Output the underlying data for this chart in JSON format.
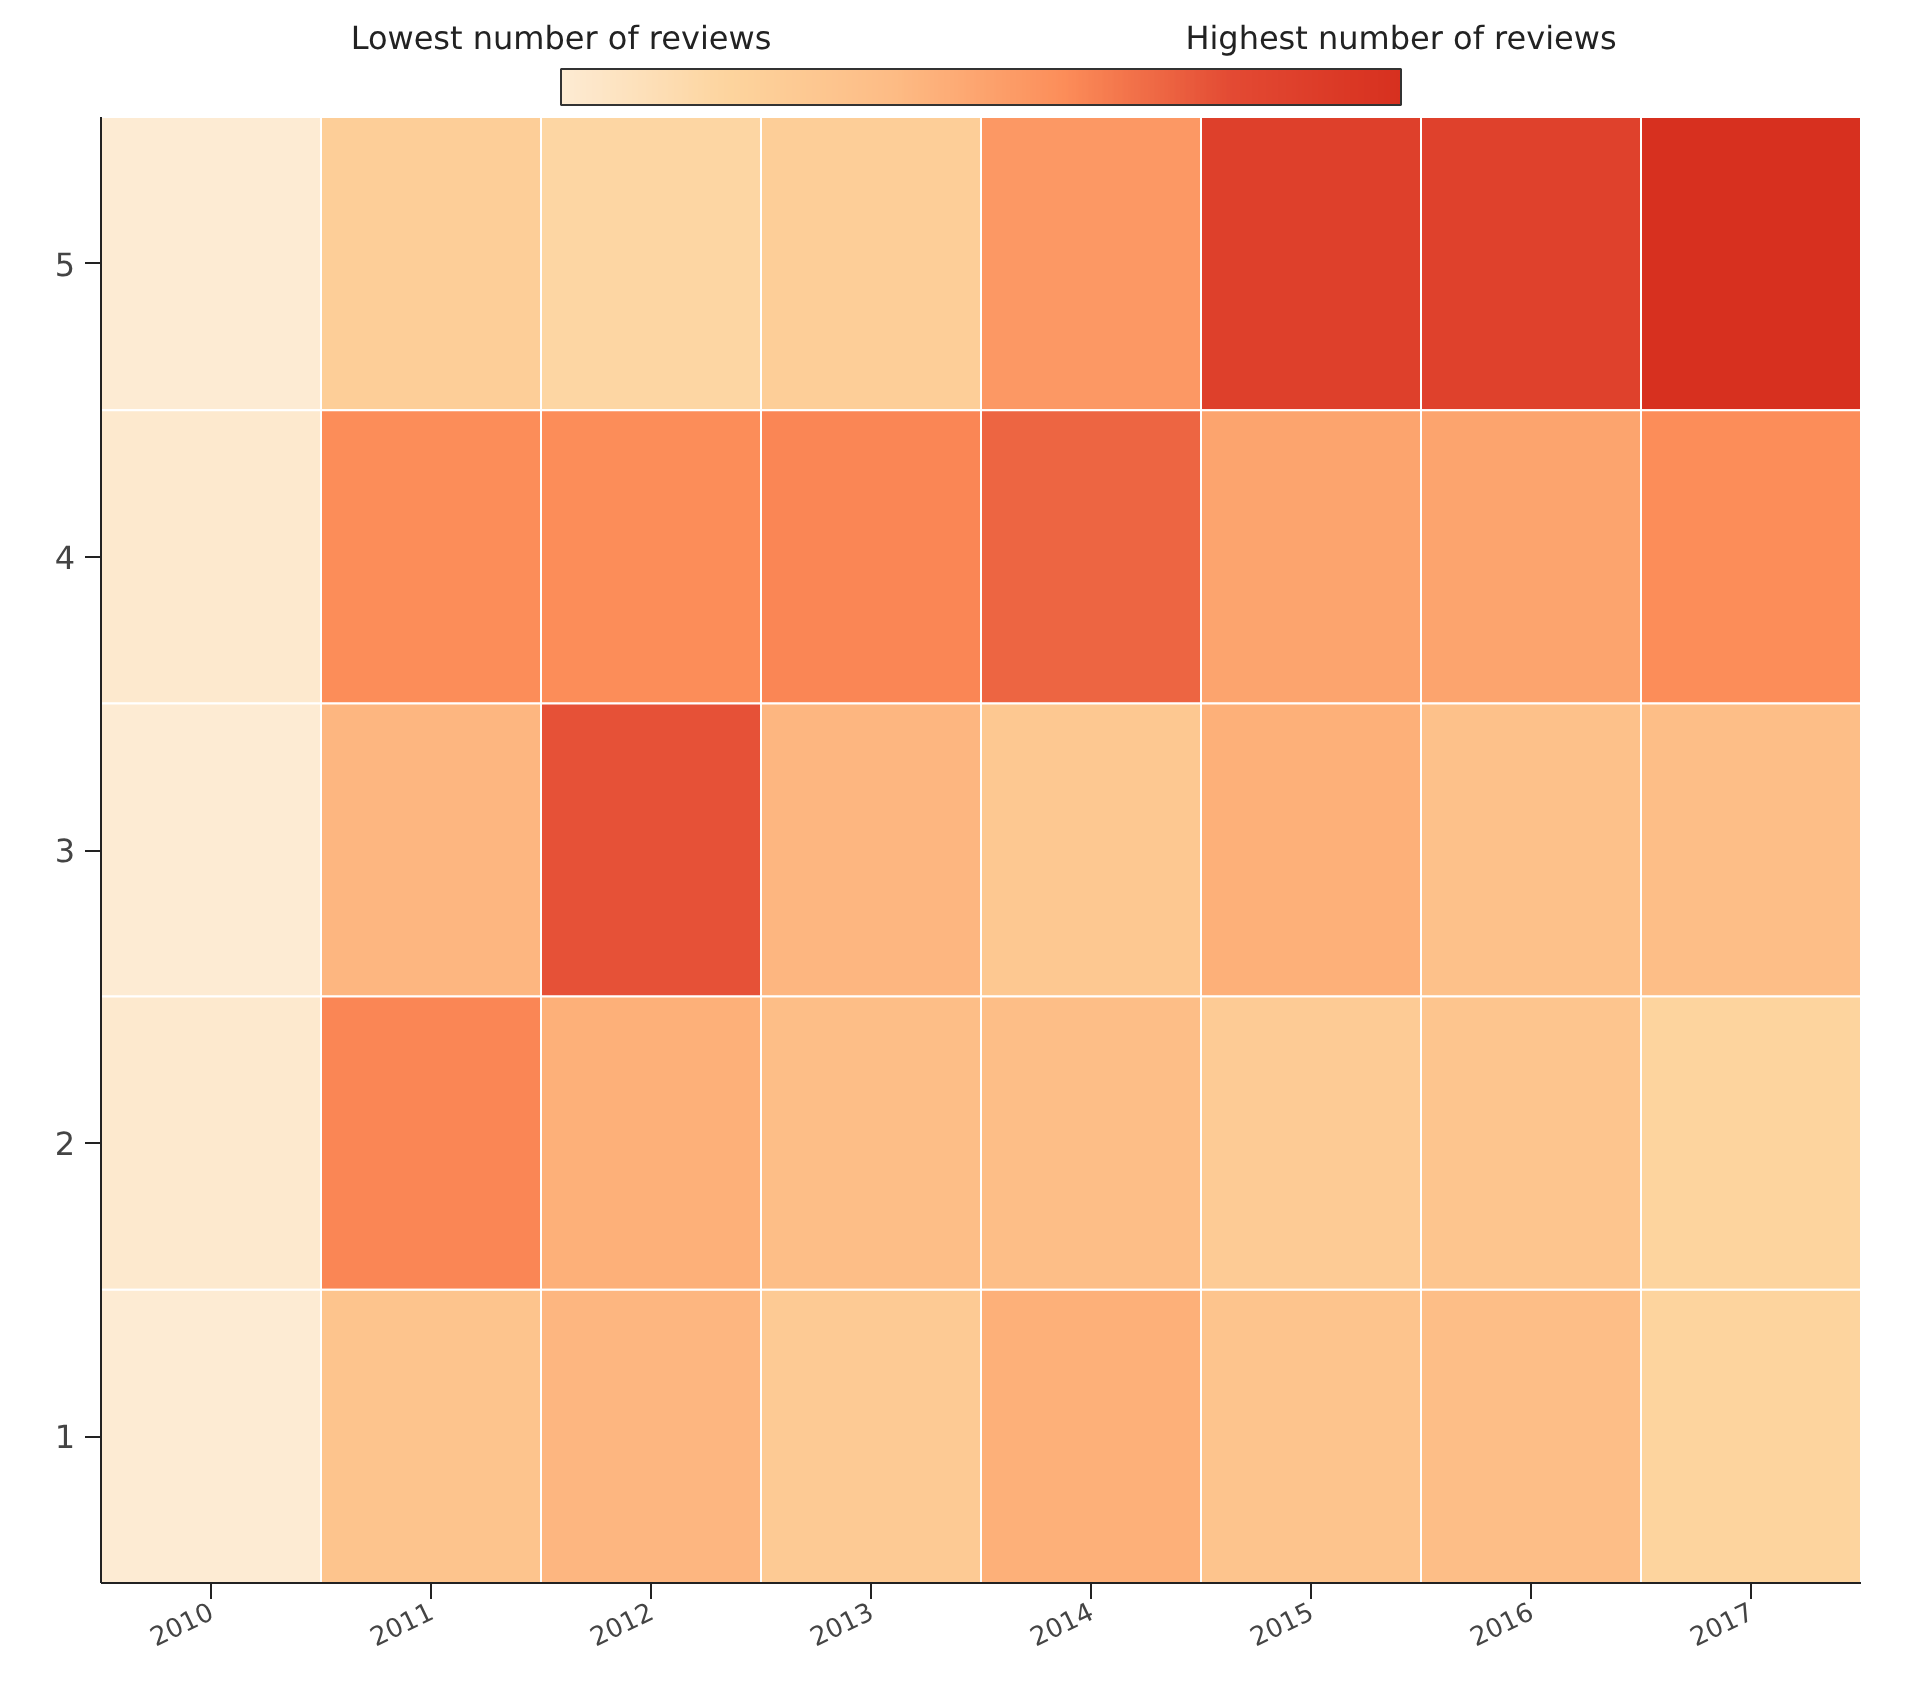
{
  "chart_data": {
    "type": "heatmap",
    "categories": [
      "2010",
      "2011",
      "2012",
      "2013",
      "2014",
      "2015",
      "2016",
      "2017"
    ],
    "y_categories": [
      "5",
      "4",
      "3",
      "2",
      "1"
    ],
    "cells": [
      [
        0.0,
        0.25,
        0.18,
        0.25,
        0.55,
        0.88,
        0.87,
        1.0
      ],
      [
        0.02,
        0.6,
        0.6,
        0.62,
        0.72,
        0.5,
        0.5,
        0.6
      ],
      [
        0.0,
        0.42,
        0.78,
        0.42,
        0.3,
        0.45,
        0.35,
        0.38
      ],
      [
        0.02,
        0.62,
        0.45,
        0.38,
        0.38,
        0.27,
        0.32,
        0.2
      ],
      [
        0.0,
        0.33,
        0.42,
        0.28,
        0.45,
        0.33,
        0.38,
        0.2
      ]
    ],
    "clim": [
      0,
      1
    ],
    "cticks": [
      {
        "value": 0,
        "label": "Lowest number of reviews"
      },
      {
        "value": 1,
        "label": "Highest number of reviews"
      }
    ]
  }
}
